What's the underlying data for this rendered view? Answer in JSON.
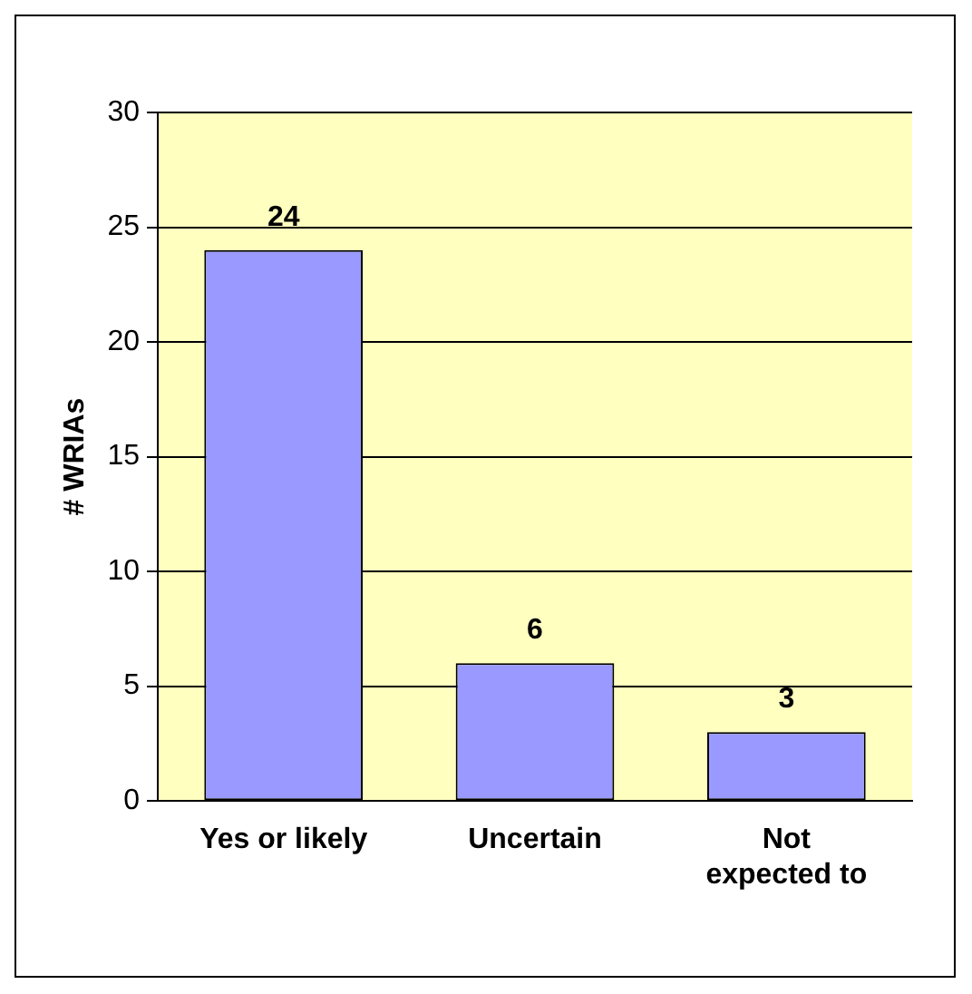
{
  "chart_data": {
    "type": "bar",
    "ylabel": "# WRIAs",
    "categories": [
      "Yes or likely",
      "Uncertain",
      "Not expected to"
    ],
    "values": [
      24,
      6,
      3
    ],
    "color": "#9999ff",
    "ylim": [
      0,
      30
    ],
    "yticks": [
      0,
      5,
      10,
      15,
      20,
      25,
      30
    ],
    "grid": "y",
    "legend": false,
    "data_labels": true
  }
}
